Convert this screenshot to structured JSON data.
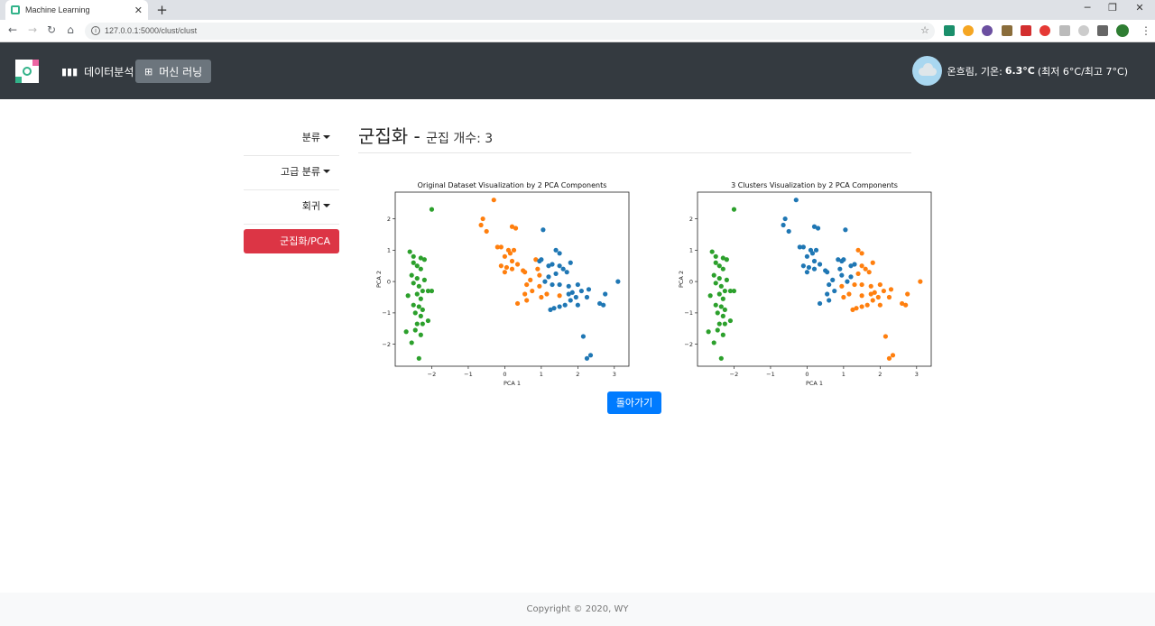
{
  "browser": {
    "tab_title": "Machine Learning",
    "url": "127.0.0.1:5000/clust/clust"
  },
  "navbar": {
    "items": [
      {
        "label": "데이터분석",
        "icon": "bar-chart-icon"
      },
      {
        "label": "머신 러닝",
        "icon": "sitemap-icon",
        "active": true
      }
    ],
    "weather": {
      "desc": "온흐림, 기온:",
      "temp": "6.3°C",
      "range": "(최저 6°C/최고 7°C)"
    }
  },
  "sidebar": {
    "items": [
      "분류",
      "고급 분류",
      "회귀"
    ],
    "active": "군집화/PCA"
  },
  "header": {
    "title": "군집화 -",
    "subtitle": "군집 개수: 3"
  },
  "back_button": "돌아가기",
  "footer": "Copyright © 2020, WY",
  "colors": {
    "blue": "#1f77b4",
    "orange": "#ff7f0e",
    "green": "#2ca02c"
  },
  "chart_data": [
    {
      "type": "scatter",
      "title": "Original Dataset Visualization by 2 PCA Components",
      "xlabel": "PCA 1",
      "ylabel": "PCA 2",
      "xlim": [
        -3.0,
        3.4
      ],
      "ylim": [
        -2.7,
        2.85
      ],
      "xticks": [
        -2,
        -1,
        0,
        1,
        2,
        3
      ],
      "yticks": [
        -2,
        -1,
        0,
        1,
        2
      ],
      "series": [
        {
          "color": "#2ca02c",
          "points": [
            [
              -2.0,
              2.3
            ],
            [
              -2.6,
              0.95
            ],
            [
              -2.5,
              0.6
            ],
            [
              -2.5,
              0.8
            ],
            [
              -2.3,
              0.75
            ],
            [
              -2.2,
              0.7
            ],
            [
              -2.4,
              0.5
            ],
            [
              -2.3,
              0.4
            ],
            [
              -2.55,
              0.2
            ],
            [
              -2.4,
              0.1
            ],
            [
              -2.2,
              0.05
            ],
            [
              -2.5,
              -0.05
            ],
            [
              -2.35,
              -0.15
            ],
            [
              -2.1,
              -0.3
            ],
            [
              -2.0,
              -0.3
            ],
            [
              -2.25,
              -0.3
            ],
            [
              -2.65,
              -0.45
            ],
            [
              -2.4,
              -0.4
            ],
            [
              -2.3,
              -0.55
            ],
            [
              -2.5,
              -0.75
            ],
            [
              -2.35,
              -0.8
            ],
            [
              -2.25,
              -0.9
            ],
            [
              -2.45,
              -1.0
            ],
            [
              -2.3,
              -1.1
            ],
            [
              -2.1,
              -1.25
            ],
            [
              -2.4,
              -1.35
            ],
            [
              -2.25,
              -1.35
            ],
            [
              -2.7,
              -1.6
            ],
            [
              -2.45,
              -1.55
            ],
            [
              -2.55,
              -1.95
            ],
            [
              -2.35,
              -2.45
            ],
            [
              -2.3,
              -1.7
            ]
          ]
        },
        {
          "color": "#ff7f0e",
          "points": [
            [
              -0.3,
              2.6
            ],
            [
              -0.6,
              2.0
            ],
            [
              -0.65,
              1.8
            ],
            [
              -0.5,
              1.6
            ],
            [
              0.2,
              1.75
            ],
            [
              0.3,
              1.7
            ],
            [
              -0.2,
              1.1
            ],
            [
              -0.1,
              1.1
            ],
            [
              0.1,
              1.0
            ],
            [
              0.25,
              1.0
            ],
            [
              0.15,
              0.9
            ],
            [
              0.0,
              0.8
            ],
            [
              0.2,
              0.65
            ],
            [
              0.35,
              0.55
            ],
            [
              -0.1,
              0.5
            ],
            [
              0.05,
              0.45
            ],
            [
              0.0,
              0.3
            ],
            [
              0.2,
              0.4
            ],
            [
              0.5,
              0.35
            ],
            [
              0.55,
              0.3
            ],
            [
              0.85,
              0.7
            ],
            [
              0.9,
              0.4
            ],
            [
              0.95,
              0.2
            ],
            [
              0.7,
              0.05
            ],
            [
              0.6,
              -0.1
            ],
            [
              0.75,
              -0.3
            ],
            [
              0.55,
              -0.4
            ],
            [
              0.6,
              -0.6
            ],
            [
              1.0,
              -0.5
            ],
            [
              1.15,
              -0.4
            ],
            [
              0.95,
              -0.15
            ],
            [
              0.35,
              -0.7
            ],
            [
              1.5,
              -0.45
            ]
          ]
        },
        {
          "color": "#1f77b4",
          "points": [
            [
              1.05,
              1.65
            ],
            [
              1.4,
              1.0
            ],
            [
              1.5,
              0.9
            ],
            [
              1.0,
              0.7
            ],
            [
              0.95,
              0.65
            ],
            [
              1.2,
              0.5
            ],
            [
              1.3,
              0.55
            ],
            [
              1.5,
              0.5
            ],
            [
              1.6,
              0.4
            ],
            [
              1.8,
              0.6
            ],
            [
              1.7,
              0.3
            ],
            [
              1.4,
              0.25
            ],
            [
              1.2,
              0.15
            ],
            [
              1.1,
              0.0
            ],
            [
              1.3,
              -0.1
            ],
            [
              1.5,
              -0.1
            ],
            [
              1.75,
              -0.15
            ],
            [
              2.0,
              -0.1
            ],
            [
              2.1,
              -0.3
            ],
            [
              2.3,
              -0.25
            ],
            [
              2.25,
              -0.5
            ],
            [
              1.75,
              -0.4
            ],
            [
              1.8,
              -0.6
            ],
            [
              1.65,
              -0.75
            ],
            [
              1.5,
              -0.8
            ],
            [
              1.35,
              -0.85
            ],
            [
              1.25,
              -0.9
            ],
            [
              1.95,
              -0.5
            ],
            [
              2.6,
              -0.7
            ],
            [
              2.7,
              -0.75
            ],
            [
              2.75,
              -0.4
            ],
            [
              3.1,
              0.0
            ],
            [
              2.15,
              -1.75
            ],
            [
              2.25,
              -2.45
            ],
            [
              2.35,
              -2.35
            ],
            [
              1.85,
              -0.35
            ],
            [
              2.0,
              -0.75
            ]
          ]
        }
      ]
    },
    {
      "type": "scatter",
      "title": "3 Clusters Visualization by 2 PCA Components",
      "xlabel": "PCA 1",
      "ylabel": "PCA 2",
      "xlim": [
        -3.0,
        3.4
      ],
      "ylim": [
        -2.7,
        2.85
      ],
      "xticks": [
        -2,
        -1,
        0,
        1,
        2,
        3
      ],
      "yticks": [
        -2,
        -1,
        0,
        1,
        2
      ],
      "series": [
        {
          "color": "#2ca02c",
          "points": [
            [
              -2.0,
              2.3
            ],
            [
              -2.6,
              0.95
            ],
            [
              -2.5,
              0.6
            ],
            [
              -2.5,
              0.8
            ],
            [
              -2.3,
              0.75
            ],
            [
              -2.2,
              0.7
            ],
            [
              -2.4,
              0.5
            ],
            [
              -2.3,
              0.4
            ],
            [
              -2.55,
              0.2
            ],
            [
              -2.4,
              0.1
            ],
            [
              -2.2,
              0.05
            ],
            [
              -2.5,
              -0.05
            ],
            [
              -2.35,
              -0.15
            ],
            [
              -2.1,
              -0.3
            ],
            [
              -2.0,
              -0.3
            ],
            [
              -2.25,
              -0.3
            ],
            [
              -2.65,
              -0.45
            ],
            [
              -2.4,
              -0.4
            ],
            [
              -2.3,
              -0.55
            ],
            [
              -2.5,
              -0.75
            ],
            [
              -2.35,
              -0.8
            ],
            [
              -2.25,
              -0.9
            ],
            [
              -2.45,
              -1.0
            ],
            [
              -2.3,
              -1.1
            ],
            [
              -2.1,
              -1.25
            ],
            [
              -2.4,
              -1.35
            ],
            [
              -2.25,
              -1.35
            ],
            [
              -2.7,
              -1.6
            ],
            [
              -2.45,
              -1.55
            ],
            [
              -2.55,
              -1.95
            ],
            [
              -2.35,
              -2.45
            ],
            [
              -2.3,
              -1.7
            ]
          ]
        },
        {
          "color": "#1f77b4",
          "points": [
            [
              -0.3,
              2.6
            ],
            [
              -0.6,
              2.0
            ],
            [
              -0.65,
              1.8
            ],
            [
              -0.5,
              1.6
            ],
            [
              0.2,
              1.75
            ],
            [
              0.3,
              1.7
            ],
            [
              -0.2,
              1.1
            ],
            [
              -0.1,
              1.1
            ],
            [
              0.1,
              1.0
            ],
            [
              0.25,
              1.0
            ],
            [
              0.15,
              0.9
            ],
            [
              0.0,
              0.8
            ],
            [
              0.2,
              0.65
            ],
            [
              0.35,
              0.55
            ],
            [
              -0.1,
              0.5
            ],
            [
              0.05,
              0.45
            ],
            [
              0.0,
              0.3
            ],
            [
              0.2,
              0.4
            ],
            [
              0.5,
              0.35
            ],
            [
              0.55,
              0.3
            ],
            [
              0.85,
              0.7
            ],
            [
              0.9,
              0.4
            ],
            [
              0.95,
              0.2
            ],
            [
              0.7,
              0.05
            ],
            [
              0.6,
              -0.1
            ],
            [
              0.75,
              -0.3
            ],
            [
              0.55,
              -0.4
            ],
            [
              0.35,
              -0.7
            ],
            [
              1.05,
              1.65
            ],
            [
              1.0,
              0.7
            ],
            [
              0.95,
              0.65
            ],
            [
              1.2,
              0.5
            ],
            [
              1.1,
              0.0
            ],
            [
              1.3,
              0.55
            ],
            [
              1.2,
              0.15
            ],
            [
              0.6,
              -0.6
            ]
          ]
        },
        {
          "color": "#ff7f0e",
          "points": [
            [
              1.4,
              1.0
            ],
            [
              1.5,
              0.9
            ],
            [
              1.5,
              0.5
            ],
            [
              1.6,
              0.4
            ],
            [
              1.8,
              0.6
            ],
            [
              1.7,
              0.3
            ],
            [
              1.4,
              0.25
            ],
            [
              1.3,
              -0.1
            ],
            [
              1.5,
              -0.1
            ],
            [
              1.75,
              -0.15
            ],
            [
              2.0,
              -0.1
            ],
            [
              2.1,
              -0.3
            ],
            [
              2.3,
              -0.25
            ],
            [
              2.25,
              -0.5
            ],
            [
              1.75,
              -0.4
            ],
            [
              1.8,
              -0.6
            ],
            [
              1.65,
              -0.75
            ],
            [
              1.5,
              -0.8
            ],
            [
              1.35,
              -0.85
            ],
            [
              1.25,
              -0.9
            ],
            [
              1.95,
              -0.5
            ],
            [
              2.6,
              -0.7
            ],
            [
              2.7,
              -0.75
            ],
            [
              2.75,
              -0.4
            ],
            [
              3.1,
              0.0
            ],
            [
              2.15,
              -1.75
            ],
            [
              2.25,
              -2.45
            ],
            [
              2.35,
              -2.35
            ],
            [
              1.85,
              -0.35
            ],
            [
              2.0,
              -0.75
            ],
            [
              1.0,
              -0.5
            ],
            [
              1.15,
              -0.4
            ],
            [
              0.95,
              -0.15
            ],
            [
              1.5,
              -0.45
            ]
          ]
        }
      ]
    }
  ]
}
